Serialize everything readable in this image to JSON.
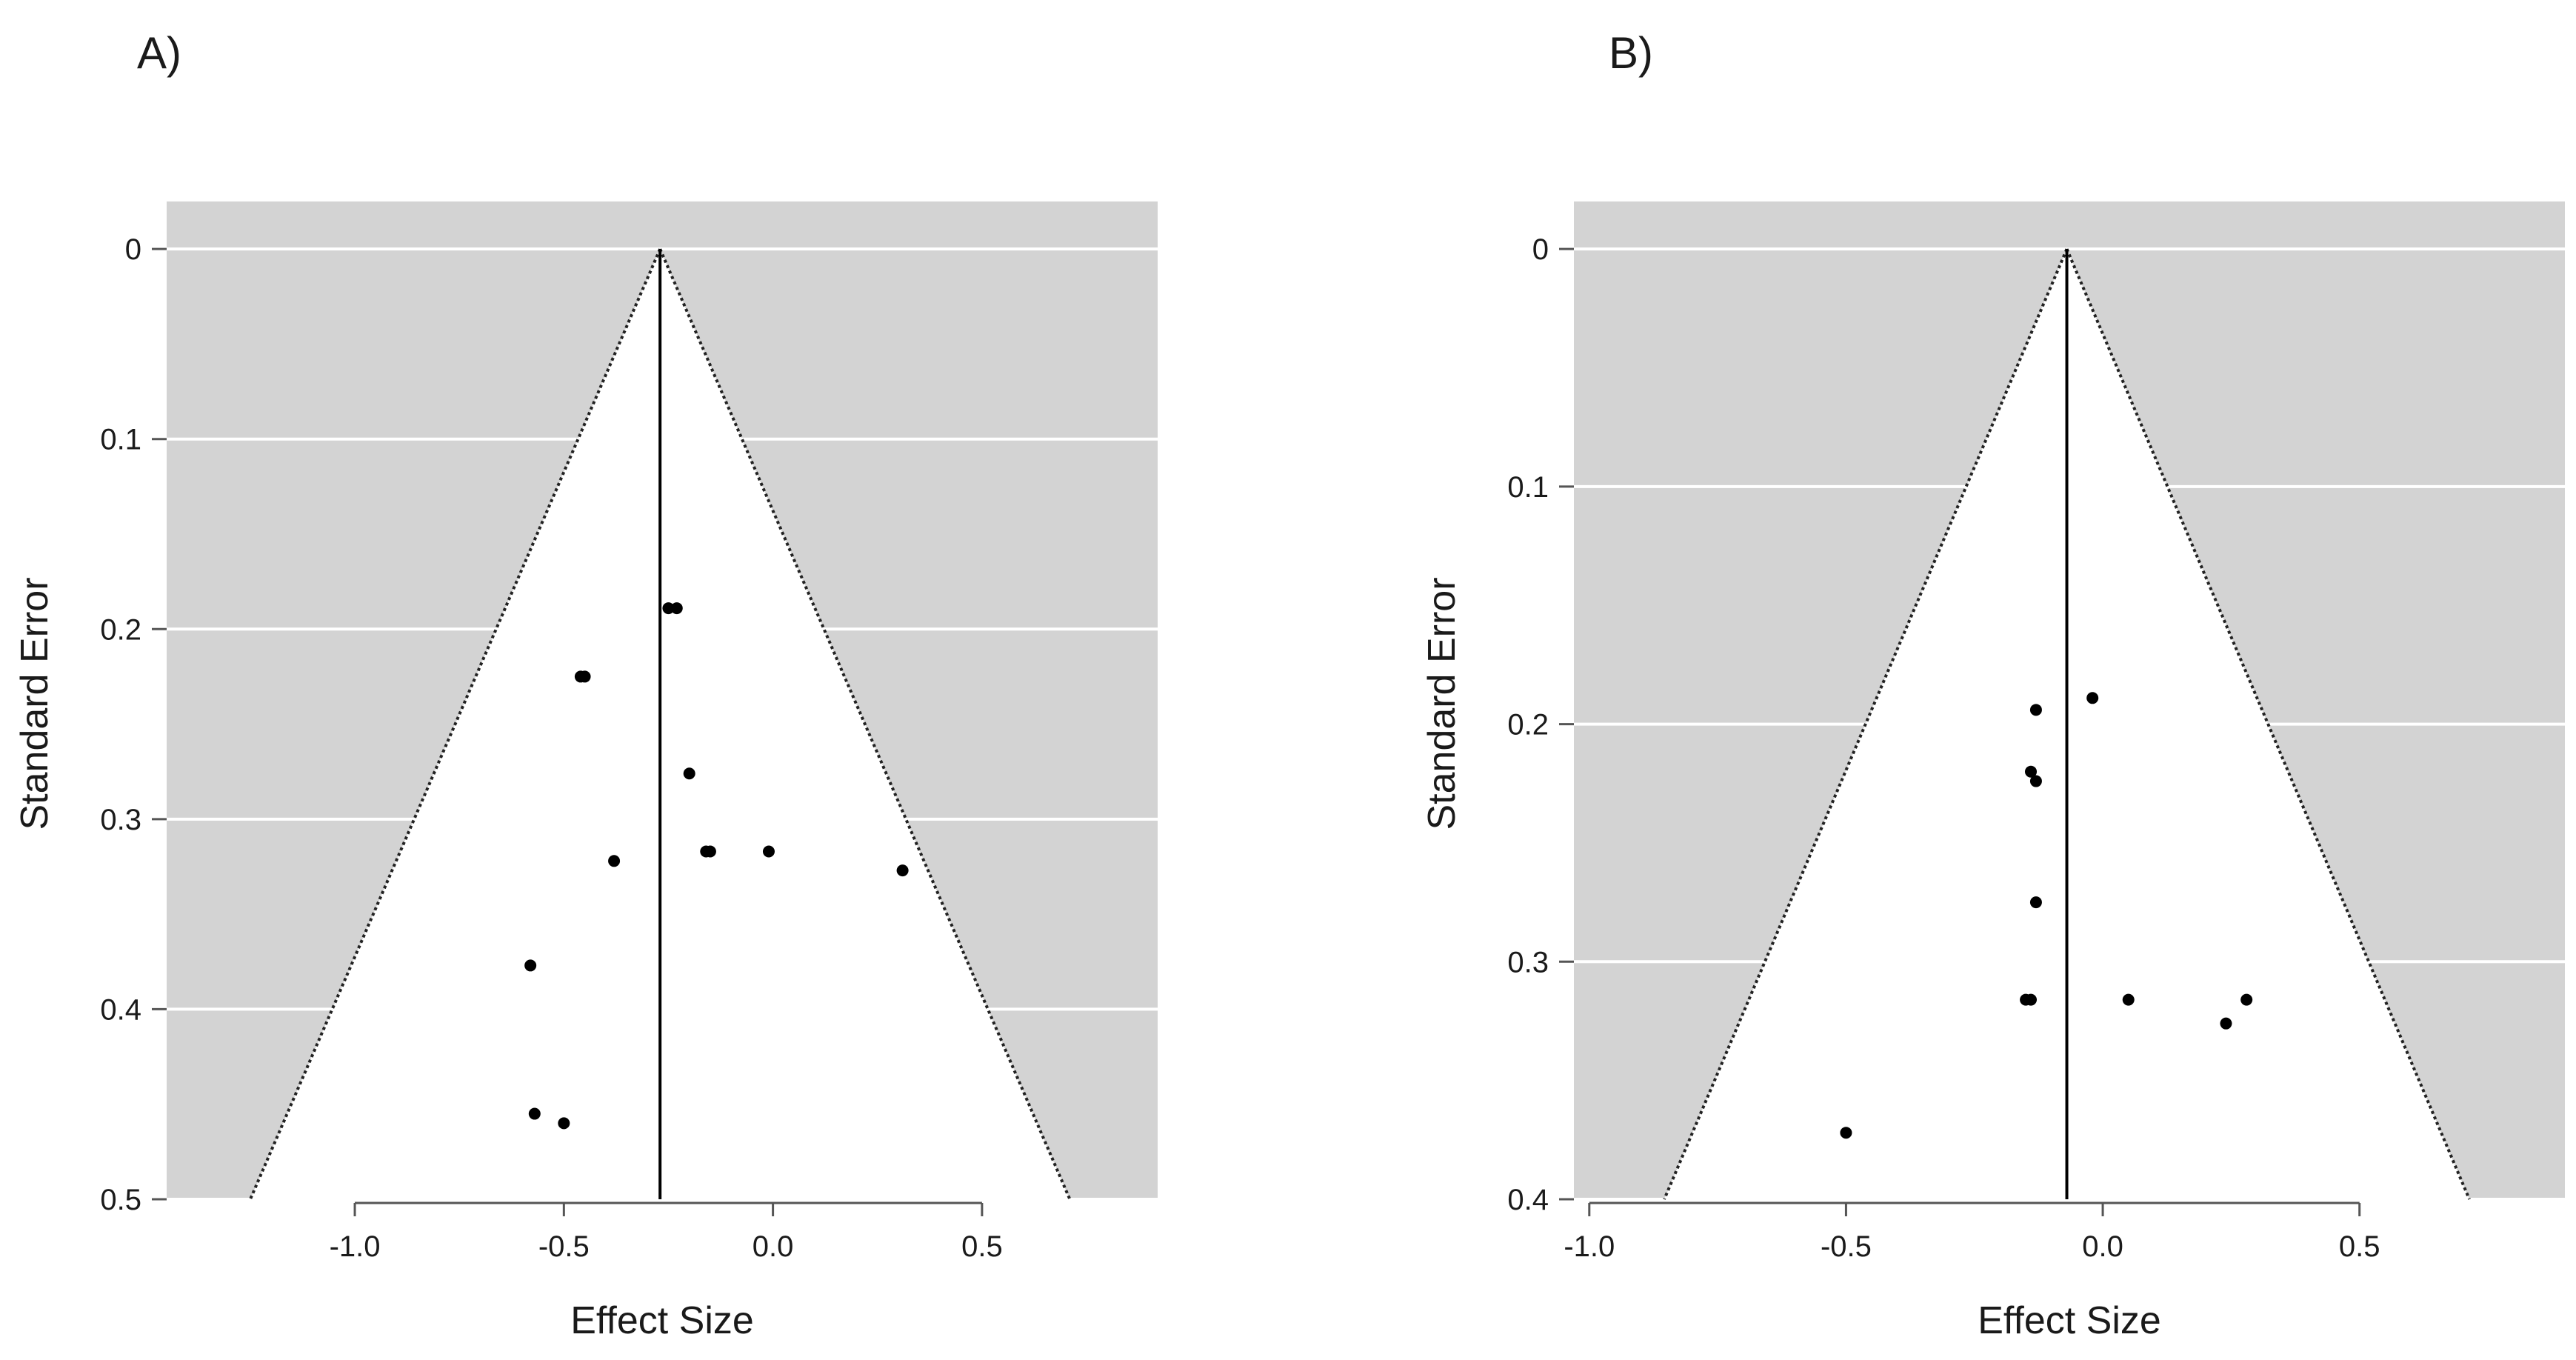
{
  "chart_data": [
    {
      "panel_label": "A)",
      "type": "scatter",
      "subtype": "funnel-plot",
      "xlabel": "Effect Size",
      "ylabel": "Standard Error",
      "xlim": [
        -1.45,
        0.92
      ],
      "ylim": [
        0.5,
        -0.025
      ],
      "y_inverted": true,
      "x_ticks": [
        -1.0,
        -0.5,
        0.0,
        0.5
      ],
      "x_tick_labels": [
        "-1.0",
        "-0.5",
        "0.0",
        "0.5"
      ],
      "y_ticks": [
        0,
        0.1,
        0.2,
        0.3,
        0.4,
        0.5
      ],
      "y_tick_labels": [
        "0",
        "0.1",
        "0.2",
        "0.3",
        "0.4",
        "0.5"
      ],
      "center_line": -0.27,
      "funnel_z": 1.96,
      "grid": true,
      "background": "#d3d3d3",
      "points": [
        {
          "x": -0.25,
          "y": 0.189
        },
        {
          "x": -0.23,
          "y": 0.189
        },
        {
          "x": -0.46,
          "y": 0.225
        },
        {
          "x": -0.45,
          "y": 0.225
        },
        {
          "x": -0.2,
          "y": 0.276
        },
        {
          "x": -0.38,
          "y": 0.322
        },
        {
          "x": -0.16,
          "y": 0.317
        },
        {
          "x": -0.15,
          "y": 0.317
        },
        {
          "x": -0.01,
          "y": 0.317
        },
        {
          "x": 0.31,
          "y": 0.327
        },
        {
          "x": -0.58,
          "y": 0.377
        },
        {
          "x": -0.57,
          "y": 0.455
        },
        {
          "x": -0.5,
          "y": 0.46
        }
      ]
    },
    {
      "panel_label": "B)",
      "type": "scatter",
      "subtype": "funnel-plot",
      "xlabel": "Effect Size",
      "ylabel": "Standard Error",
      "xlim": [
        -1.03,
        0.9
      ],
      "ylim": [
        0.4,
        -0.02
      ],
      "y_inverted": true,
      "x_ticks": [
        -1.0,
        -0.5,
        0.0,
        0.5
      ],
      "x_tick_labels": [
        "-1.0",
        "-0.5",
        "0.0",
        "0.5"
      ],
      "y_ticks": [
        0,
        0.1,
        0.2,
        0.3,
        0.4
      ],
      "y_tick_labels": [
        "0",
        "0.1",
        "0.2",
        "0.3",
        "0.4"
      ],
      "center_line": -0.07,
      "funnel_z": 1.96,
      "grid": true,
      "background": "#d3d3d3",
      "points": [
        {
          "x": -0.02,
          "y": 0.189
        },
        {
          "x": -0.13,
          "y": 0.194
        },
        {
          "x": -0.14,
          "y": 0.22
        },
        {
          "x": -0.13,
          "y": 0.224
        },
        {
          "x": -0.13,
          "y": 0.275
        },
        {
          "x": -0.15,
          "y": 0.316
        },
        {
          "x": -0.14,
          "y": 0.316
        },
        {
          "x": 0.05,
          "y": 0.316
        },
        {
          "x": 0.28,
          "y": 0.316
        },
        {
          "x": 0.24,
          "y": 0.326
        },
        {
          "x": -0.5,
          "y": 0.372
        }
      ]
    }
  ]
}
